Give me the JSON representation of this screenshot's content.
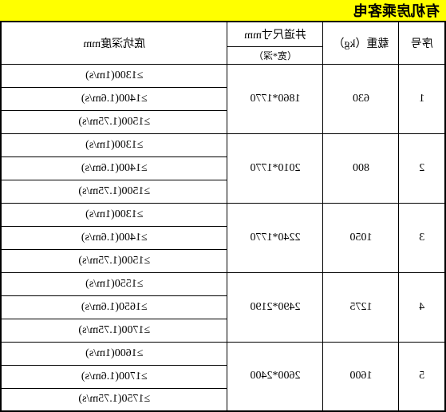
{
  "title": "有机房乘客电",
  "headers": {
    "seq": "序号",
    "load": "载重（kg）",
    "shaft_main": "井道尺寸mm",
    "shaft_sub": "（宽*深）",
    "depth": "底坑深度mm"
  },
  "rows": [
    {
      "seq": "1",
      "load": "630",
      "shaft": "1860*1770",
      "depths": [
        "≥1300(1m/s)",
        "≥1400(1.6m/s)",
        "≥1500(1.75m/s)"
      ]
    },
    {
      "seq": "2",
      "load": "800",
      "shaft": "2010*1770",
      "depths": [
        "≥1300(1m/s)",
        "≥1400(1.6m/s)",
        "≥1500(1.75m/s)"
      ]
    },
    {
      "seq": "3",
      "load": "1050",
      "shaft": "2240*1770",
      "depths": [
        "≥1300(1m/s)",
        "≥1400(1.6m/s)",
        "≥1500(1.75m/s)"
      ]
    },
    {
      "seq": "4",
      "load": "1275",
      "shaft": "2490*2190",
      "depths": [
        "≥1550(1m/s)",
        "≥1650(1.6m/s)",
        "≥1700(1.75m/s)"
      ]
    },
    {
      "seq": "5",
      "load": "1600",
      "shaft": "2600*2400",
      "depths": [
        "≥1600(1m/s)",
        "≥1700(1.6m/s)",
        "≥1750(1.75m/s)"
      ]
    }
  ],
  "colors": {
    "title_bg": "#ffff00",
    "border": "#000000",
    "text": "#000000",
    "bg": "#ffffff"
  }
}
